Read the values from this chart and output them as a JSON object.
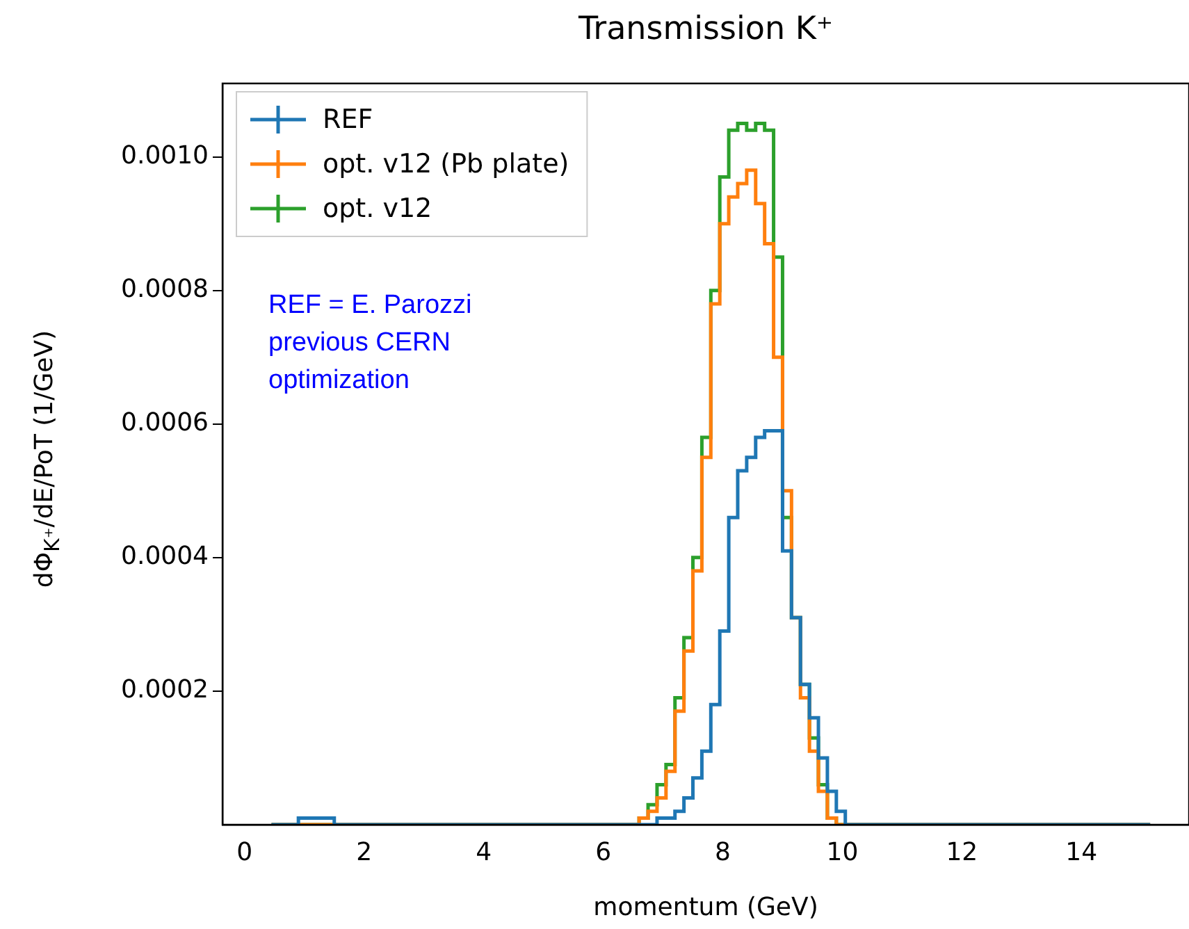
{
  "chart_data": {
    "type": "histogram",
    "title": "Transmission K⁺",
    "xlabel": "momentum (GeV)",
    "ylabel": "dΦ$_{K⁺}$/dE/PoT (1/GeV)",
    "bins": [
      0.45,
      0.6,
      0.75,
      0.9,
      1.05,
      1.2,
      1.35,
      1.5,
      1.65,
      1.8,
      1.95,
      2.1,
      2.25,
      2.4,
      2.55,
      2.7,
      2.85,
      3.0,
      3.15,
      3.3,
      3.45,
      3.6,
      3.75,
      3.9,
      4.05,
      4.2,
      4.35,
      4.5,
      4.65,
      4.8,
      4.95,
      5.1,
      5.25,
      5.4,
      5.55,
      5.7,
      5.85,
      6.0,
      6.15,
      6.3,
      6.45,
      6.6,
      6.75,
      6.9,
      7.05,
      7.2,
      7.35,
      7.5,
      7.65,
      7.8,
      7.95,
      8.1,
      8.25,
      8.4,
      8.55,
      8.7,
      8.85,
      9.0,
      9.15,
      9.3,
      9.45,
      9.6,
      9.75,
      9.9,
      10.05,
      10.2,
      10.35,
      10.5,
      10.65,
      10.8,
      10.95,
      11.1,
      11.25,
      11.4,
      11.55,
      11.7,
      11.85,
      12.0,
      12.15,
      12.3,
      12.45,
      12.6,
      12.75,
      12.9,
      13.05,
      13.2,
      13.35,
      13.5,
      13.65,
      13.8,
      13.95,
      14.1,
      14.25,
      14.4,
      14.55,
      14.7,
      14.85,
      15.0,
      15.15
    ],
    "series": [
      {
        "name": "REF",
        "color": "#1f77b4",
        "values": [
          0,
          0,
          0,
          1e-05,
          1e-05,
          1e-05,
          1e-05,
          0,
          0,
          0,
          0,
          0,
          0,
          0,
          0,
          0,
          0,
          0,
          0,
          0,
          0,
          0,
          0,
          0,
          0,
          0,
          0,
          0,
          0,
          0,
          0,
          0,
          0,
          0,
          0,
          0,
          0,
          0,
          0,
          0,
          0,
          0,
          0,
          1e-05,
          1e-05,
          2e-05,
          4e-05,
          7e-05,
          0.00011,
          0.00018,
          0.00029,
          0.00046,
          0.00053,
          0.00055,
          0.00058,
          0.00059,
          0.00059,
          0.00041,
          0.00031,
          0.00021,
          0.00016,
          0.0001,
          5e-05,
          2e-05,
          0,
          0,
          0,
          0,
          0,
          0,
          0,
          0,
          0,
          0,
          0,
          0,
          0,
          0,
          0,
          0,
          0,
          0,
          0,
          0,
          0,
          0,
          0,
          0,
          0,
          0,
          0,
          0,
          0,
          0,
          0,
          0,
          0,
          0
        ]
      },
      {
        "name": "opt. v12 (Pb plate)",
        "color": "#ff7f0e",
        "values": [
          0,
          0,
          0,
          0,
          0,
          0,
          0,
          0,
          0,
          0,
          0,
          0,
          0,
          0,
          0,
          0,
          0,
          0,
          0,
          0,
          0,
          0,
          0,
          0,
          0,
          0,
          0,
          0,
          0,
          0,
          0,
          0,
          0,
          0,
          0,
          0,
          0,
          0,
          0,
          0,
          0,
          1e-05,
          2e-05,
          4e-05,
          8e-05,
          0.00017,
          0.00026,
          0.00038,
          0.00055,
          0.00078,
          0.0009,
          0.00094,
          0.00096,
          0.00098,
          0.00093,
          0.00087,
          0.0007,
          0.0005,
          0.00031,
          0.00019,
          0.00011,
          5e-05,
          1e-05,
          0,
          0,
          0,
          0,
          0,
          0,
          0,
          0,
          0,
          0,
          0,
          0,
          0,
          0,
          0,
          0,
          0,
          0,
          0,
          0,
          0,
          0,
          0,
          0,
          0,
          0,
          0,
          0,
          0,
          0,
          0,
          0,
          0,
          0,
          0
        ]
      },
      {
        "name": "opt. v12",
        "color": "#2ca02c",
        "values": [
          0,
          0,
          0,
          0,
          0,
          0,
          0,
          0,
          0,
          0,
          0,
          0,
          0,
          0,
          0,
          0,
          0,
          0,
          0,
          0,
          0,
          0,
          0,
          0,
          0,
          0,
          0,
          0,
          0,
          0,
          0,
          0,
          0,
          0,
          0,
          0,
          0,
          0,
          0,
          0,
          0,
          1e-05,
          3e-05,
          6e-05,
          9e-05,
          0.00019,
          0.00028,
          0.0004,
          0.00058,
          0.0008,
          0.00097,
          0.00104,
          0.00105,
          0.00104,
          0.00105,
          0.00104,
          0.00085,
          0.00046,
          0.00031,
          0.00021,
          0.00013,
          6e-05,
          1e-05,
          0,
          0,
          0,
          0,
          0,
          0,
          0,
          0,
          0,
          0,
          0,
          0,
          0,
          0,
          0,
          0,
          0,
          0,
          0,
          0,
          0,
          0,
          0,
          0,
          0,
          0,
          0,
          0,
          0,
          0,
          0,
          0,
          0,
          0,
          0
        ]
      }
    ],
    "xlim": [
      -0.37,
      15.8
    ],
    "xticks": [
      0,
      2,
      4,
      6,
      8,
      10,
      12,
      14
    ],
    "ylim": [
      0,
      0.00111
    ],
    "yticks": [
      0.0002,
      0.0004,
      0.0006,
      0.0008,
      {
        "value": 0.001,
        "label": "0.0010"
      }
    ],
    "legend": "top left",
    "grid": false,
    "annotations": [
      "REF = E. Parozzi\nprevious CERN\noptimization"
    ]
  }
}
